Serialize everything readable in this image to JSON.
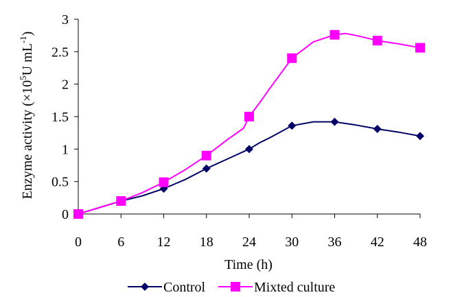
{
  "chart_data": {
    "type": "line",
    "xlabel": "Time (h)",
    "ylabel": "Enzyme activity (×10",
    "ylabel_exp": "5",
    "ylabel_unit": "U mL",
    "ylabel_unit_exp": "-1",
    "ylabel_close": ")",
    "xlim": [
      0,
      48
    ],
    "ylim": [
      0,
      3
    ],
    "x_ticks": [
      "0",
      "6",
      "12",
      "18",
      "24",
      "30",
      "36",
      "42",
      "48"
    ],
    "y_ticks": [
      "0",
      "0.5",
      "1",
      "1.5",
      "2",
      "2.5",
      "3"
    ],
    "grid": false,
    "legend_position": "bottom",
    "x": [
      0,
      6,
      12,
      18,
      24,
      30,
      36,
      42,
      48
    ],
    "series": [
      {
        "name": "Control",
        "color": "#000066",
        "marker": "diamond",
        "values": [
          0,
          0.2,
          0.39,
          0.7,
          1.0,
          1.36,
          1.42,
          1.31,
          1.2
        ],
        "curve_x": [
          0,
          3,
          6,
          9,
          12,
          15,
          18,
          21,
          24,
          25.5,
          27,
          30,
          33,
          36,
          39,
          42,
          45,
          48
        ],
        "curve_y": [
          0,
          0.1,
          0.2,
          0.28,
          0.39,
          0.53,
          0.7,
          0.85,
          1.0,
          1.1,
          1.18,
          1.36,
          1.42,
          1.42,
          1.37,
          1.31,
          1.26,
          1.2
        ]
      },
      {
        "name": "Mixted culture",
        "color": "#ff00ff",
        "marker": "square",
        "values": [
          0,
          0.2,
          0.49,
          0.9,
          1.5,
          2.4,
          2.76,
          2.67,
          2.56
        ],
        "curve_x": [
          0,
          3,
          6,
          9,
          12,
          15,
          18,
          21,
          23.2,
          24,
          25.5,
          27,
          30,
          33,
          36,
          37.5,
          39,
          42,
          45,
          48
        ],
        "curve_y": [
          0,
          0.1,
          0.2,
          0.33,
          0.49,
          0.68,
          0.9,
          1.15,
          1.32,
          1.5,
          1.72,
          1.95,
          2.4,
          2.65,
          2.76,
          2.78,
          2.75,
          2.67,
          2.62,
          2.56
        ]
      }
    ]
  }
}
